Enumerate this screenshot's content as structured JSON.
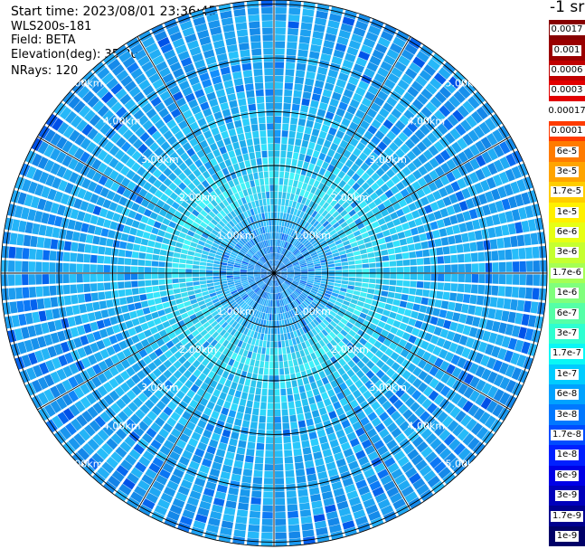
{
  "header": {
    "start_time": "Start time: 2023/08/01 23:36:45",
    "instrument": "WLS200s-181",
    "field": "Field: BETA",
    "elevation": "Elevation(deg): 35.30",
    "nrays": "NRays: 120"
  },
  "chart_data": {
    "type": "heatmap",
    "subtype": "polar-ppi",
    "field": "BETA",
    "rays": 120,
    "range_rings_km": [
      1,
      2,
      3,
      4,
      5
    ],
    "ring_labels": [
      "1.00km",
      "2.00km",
      "3.00km",
      "4.00km",
      "5.00km"
    ],
    "spokes_deg": [
      0,
      30,
      60,
      90,
      120,
      150,
      180,
      210,
      240,
      270,
      300,
      330
    ],
    "max_range_km": 5.0,
    "colorbar": {
      "unit_label": "-1 sr",
      "ticks": [
        "0.0017",
        "0.001",
        "0.0006",
        "0.0003",
        "0.00017",
        "0.0001",
        "6e-5",
        "3e-5",
        "1.7e-5",
        "1e-5",
        "6e-6",
        "3e-6",
        "1.7e-6",
        "1e-6",
        "6e-7",
        "3e-7",
        "1.7e-7",
        "1e-7",
        "6e-8",
        "3e-8",
        "1.7e-8",
        "1e-8",
        "6e-9",
        "3e-9",
        "1.7e-9",
        "1e-9"
      ],
      "colors": [
        "#870000",
        "#9a0000",
        "#c00000",
        "#e20000",
        "#ffffff",
        "#ff3b00",
        "#ff7b00",
        "#ffa400",
        "#ffcd00",
        "#fff000",
        "#e7ff14",
        "#c5ff30",
        "#a5ff54",
        "#80ff7c",
        "#55ffa7",
        "#2effd1",
        "#0af7f5",
        "#00ccff",
        "#00a2ff",
        "#0078ff",
        "#004cff",
        "#0020ff",
        "#0000e6",
        "#0000bb",
        "#00008f",
        "#000068"
      ]
    },
    "radial_profile": [
      {
        "range_km": 0.0,
        "color": "#1e8df5"
      },
      {
        "range_km": 1.0,
        "color": "#30b7f8"
      },
      {
        "range_km": 1.6,
        "color": "#40e2f0"
      },
      {
        "range_km": 2.3,
        "color": "#2ac9f3"
      },
      {
        "range_km": 3.0,
        "color": "#22b4f4"
      },
      {
        "range_km": 4.2,
        "color": "#1ea6f2"
      },
      {
        "range_km": 5.0,
        "color": "#1c9cf0"
      }
    ]
  }
}
